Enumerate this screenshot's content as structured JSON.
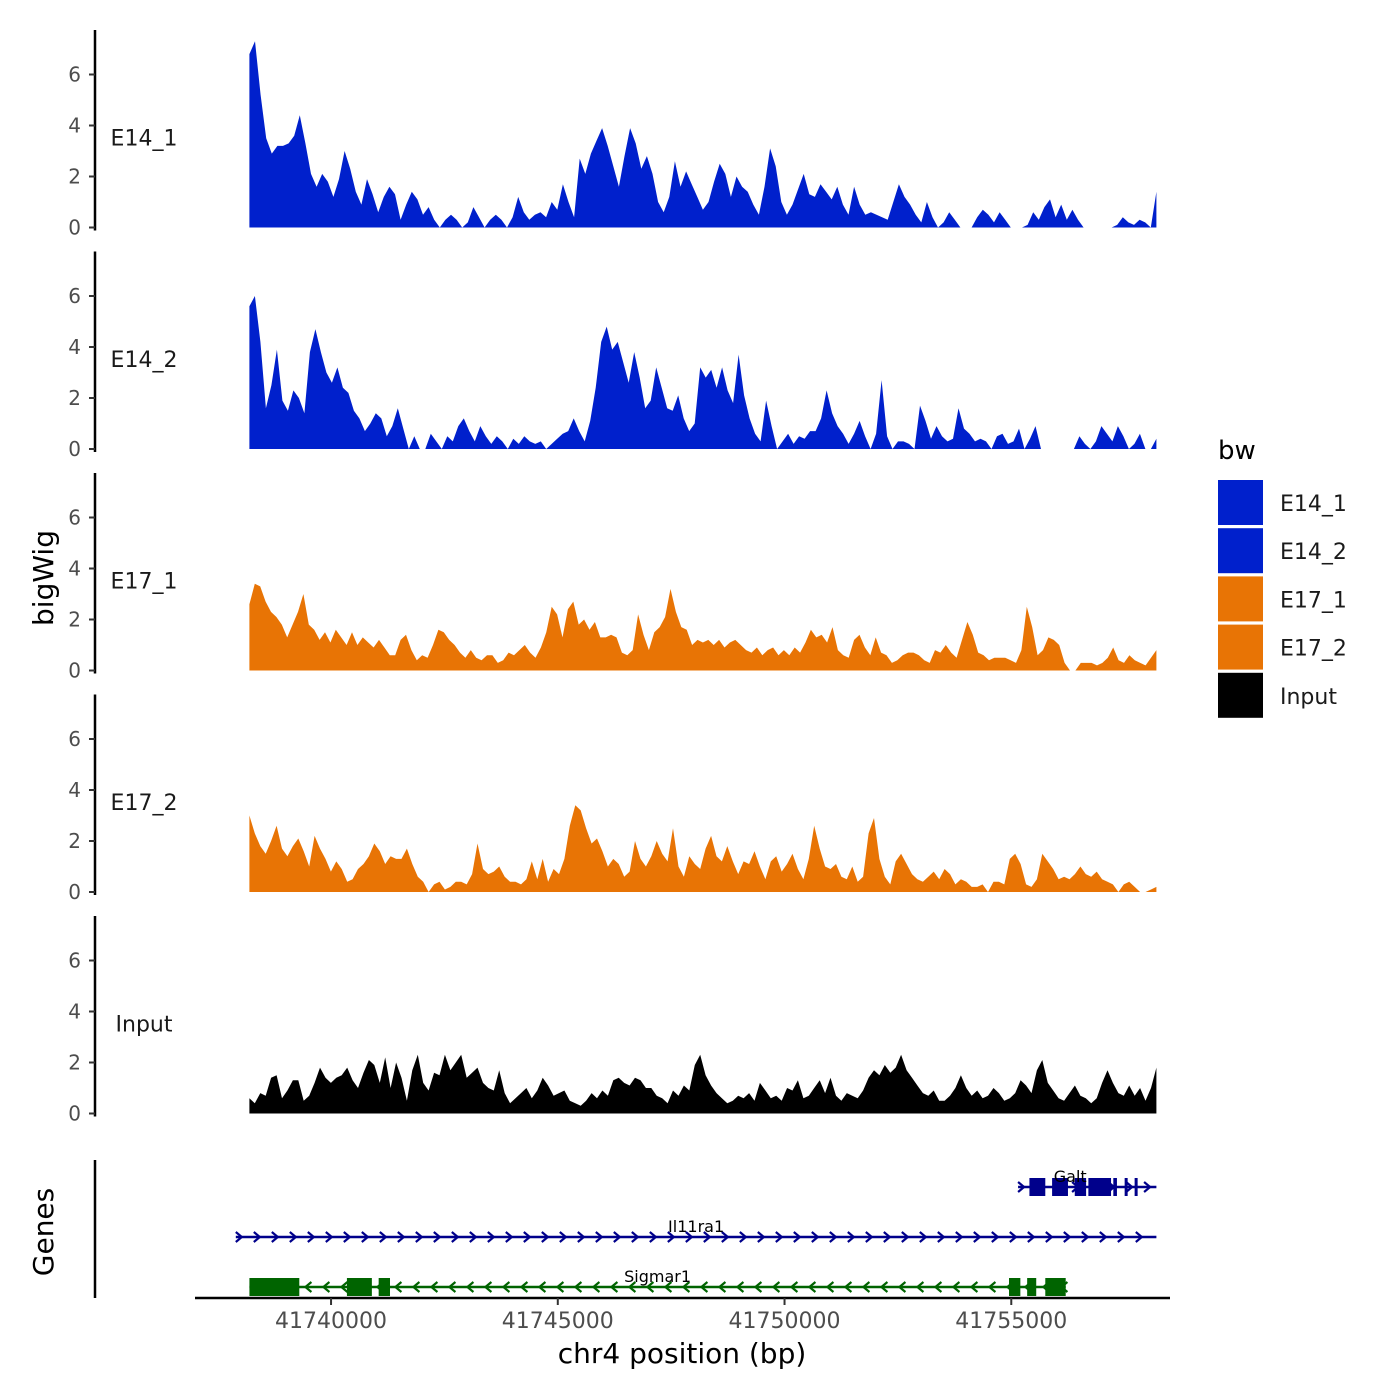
{
  "chart_data": {
    "type": "area",
    "ylabel": "bigWig",
    "genes_label": "Genes",
    "xlabel": "chr4 position (bp)",
    "xlim": [
      41737000,
      41758500
    ],
    "data_range": [
      41738200,
      41758200
    ],
    "ylim": [
      0,
      7.6
    ],
    "y_ticks": [
      "0",
      "2",
      "4",
      "6"
    ],
    "x_ticks": [
      {
        "value": 41740000,
        "label": "41740000"
      },
      {
        "value": 41745000,
        "label": "41745000"
      },
      {
        "value": 41750000,
        "label": "41750000"
      },
      {
        "value": 41755000,
        "label": "41755000"
      }
    ],
    "legend": {
      "title": "bw",
      "items": [
        {
          "label": "E14_1",
          "color": "#0020CC"
        },
        {
          "label": "E14_2",
          "color": "#0020CC"
        },
        {
          "label": "E17_1",
          "color": "#E87405"
        },
        {
          "label": "E17_2",
          "color": "#E87405"
        },
        {
          "label": "Input",
          "color": "#000000"
        }
      ]
    },
    "series": [
      {
        "name": "E14_1",
        "color": "#0020CC",
        "values": [
          6.8,
          7.3,
          5.2,
          3.5,
          2.9,
          3.2,
          3.2,
          3.3,
          3.6,
          4.4,
          3.3,
          2.1,
          1.6,
          2.1,
          1.8,
          1.2,
          1.9,
          3.0,
          2.3,
          1.4,
          0.9,
          1.9,
          1.3,
          0.6,
          1.2,
          1.6,
          1.3,
          0.3,
          0.9,
          1.4,
          1.1,
          0.5,
          0.8,
          0.3,
          0.0,
          0.3,
          0.5,
          0.3,
          0.0,
          0.2,
          0.8,
          0.4,
          0.0,
          0.3,
          0.5,
          0.3,
          0.0,
          0.4,
          1.2,
          0.6,
          0.3,
          0.5,
          0.6,
          0.4,
          1.0,
          0.7,
          1.7,
          1.0,
          0.4,
          2.7,
          2.1,
          2.9,
          3.4,
          3.9,
          3.2,
          2.4,
          1.6,
          2.8,
          3.9,
          3.3,
          2.3,
          2.8,
          2.1,
          1.0,
          0.6,
          1.2,
          2.6,
          1.6,
          2.2,
          1.7,
          1.2,
          0.7,
          1.0,
          1.8,
          2.5,
          2.1,
          1.2,
          2.0,
          1.6,
          1.4,
          0.9,
          0.5,
          1.6,
          3.1,
          2.4,
          1.0,
          0.5,
          0.9,
          1.5,
          2.1,
          1.3,
          1.2,
          1.7,
          1.4,
          1.1,
          1.6,
          0.9,
          0.5,
          1.6,
          0.9,
          0.5,
          0.6,
          0.5,
          0.4,
          0.3,
          1.0,
          1.7,
          1.2,
          0.9,
          0.5,
          0.2,
          1.0,
          0.4,
          0.0,
          0.2,
          0.6,
          0.3,
          0.0,
          0.0,
          0.0,
          0.4,
          0.7,
          0.5,
          0.2,
          0.6,
          0.3,
          0.0,
          0.0,
          0.0,
          0.1,
          0.6,
          0.3,
          0.8,
          1.1,
          0.4,
          0.9,
          0.3,
          0.7,
          0.3,
          0.0,
          0.0,
          0.0,
          0.0,
          0.0,
          0.0,
          0.1,
          0.4,
          0.2,
          0.1,
          0.3,
          0.2,
          0.0,
          1.4
        ]
      },
      {
        "name": "E14_2",
        "color": "#0020CC",
        "values": [
          5.6,
          6.0,
          4.2,
          1.6,
          2.5,
          3.9,
          1.9,
          1.5,
          2.3,
          2.0,
          1.4,
          3.8,
          4.7,
          3.8,
          3.0,
          2.6,
          3.2,
          2.4,
          2.2,
          1.5,
          1.2,
          0.7,
          1.0,
          1.4,
          1.2,
          0.5,
          0.9,
          1.6,
          0.8,
          0.0,
          0.5,
          0.0,
          0.0,
          0.6,
          0.3,
          0.0,
          0.5,
          0.3,
          0.9,
          1.2,
          0.7,
          0.3,
          0.9,
          0.5,
          0.2,
          0.5,
          0.3,
          0.0,
          0.4,
          0.2,
          0.5,
          0.3,
          0.2,
          0.3,
          0.0,
          0.2,
          0.4,
          0.6,
          0.7,
          1.2,
          0.7,
          0.3,
          1.1,
          2.4,
          4.2,
          4.8,
          3.9,
          4.2,
          3.4,
          2.6,
          3.8,
          2.8,
          1.6,
          1.9,
          3.2,
          2.4,
          1.6,
          1.5,
          2.1,
          1.2,
          0.7,
          1.0,
          3.2,
          2.8,
          3.1,
          2.4,
          3.2,
          2.3,
          1.8,
          3.7,
          2.1,
          1.2,
          0.6,
          0.3,
          1.9,
          0.9,
          0.0,
          0.3,
          0.6,
          0.2,
          0.5,
          0.4,
          0.7,
          0.7,
          1.2,
          2.3,
          1.4,
          0.9,
          0.6,
          0.2,
          0.6,
          1.1,
          0.5,
          0.0,
          0.6,
          2.7,
          0.5,
          0.0,
          0.3,
          0.3,
          0.2,
          0.0,
          1.7,
          1.1,
          0.4,
          0.9,
          0.5,
          0.3,
          0.4,
          1.6,
          0.8,
          0.6,
          0.3,
          0.4,
          0.3,
          0.0,
          0.5,
          0.6,
          0.2,
          0.3,
          0.8,
          0.0,
          0.4,
          0.9,
          0.0,
          0.0,
          0.0,
          0.0,
          0.0,
          0.0,
          0.0,
          0.5,
          0.2,
          0.0,
          0.3,
          0.9,
          0.6,
          0.3,
          0.9,
          0.5,
          0.0,
          0.2,
          0.6,
          0.0,
          0.0,
          0.4
        ]
      },
      {
        "name": "E17_1",
        "color": "#E87405",
        "values": [
          2.6,
          3.4,
          3.3,
          2.7,
          2.3,
          2.1,
          1.8,
          1.3,
          1.8,
          2.3,
          3.0,
          1.8,
          1.6,
          1.2,
          1.5,
          1.1,
          1.6,
          1.3,
          1.0,
          1.5,
          1.0,
          1.3,
          1.1,
          0.9,
          1.2,
          0.9,
          0.6,
          0.6,
          1.2,
          1.4,
          0.8,
          0.4,
          0.6,
          0.5,
          1.0,
          1.6,
          1.5,
          1.2,
          1.0,
          0.7,
          0.5,
          0.8,
          0.5,
          0.4,
          0.6,
          0.6,
          0.3,
          0.4,
          0.7,
          0.6,
          0.8,
          1.0,
          0.7,
          0.5,
          0.9,
          1.5,
          2.5,
          2.2,
          1.3,
          2.4,
          2.7,
          1.8,
          2.0,
          1.6,
          1.9,
          1.3,
          1.3,
          1.4,
          1.3,
          0.7,
          0.6,
          0.8,
          2.2,
          1.4,
          0.8,
          1.5,
          1.7,
          2.1,
          3.2,
          2.3,
          1.7,
          1.6,
          1.0,
          1.2,
          1.1,
          1.2,
          1.0,
          1.2,
          0.9,
          1.1,
          1.2,
          1.0,
          0.8,
          0.7,
          0.9,
          0.6,
          0.8,
          0.9,
          0.6,
          0.8,
          0.6,
          0.9,
          0.7,
          1.1,
          1.6,
          1.3,
          1.4,
          1.1,
          1.7,
          0.8,
          0.6,
          0.5,
          1.2,
          1.4,
          0.9,
          0.6,
          1.3,
          0.7,
          0.6,
          0.3,
          0.4,
          0.6,
          0.7,
          0.7,
          0.6,
          0.4,
          0.3,
          0.8,
          0.7,
          1.0,
          0.7,
          0.5,
          1.2,
          1.9,
          1.4,
          0.7,
          0.6,
          0.4,
          0.5,
          0.5,
          0.5,
          0.4,
          0.3,
          0.8,
          2.5,
          1.7,
          0.6,
          0.8,
          1.3,
          1.2,
          1.0,
          0.3,
          0.0,
          0.0,
          0.3,
          0.3,
          0.3,
          0.2,
          0.3,
          0.5,
          0.9,
          0.4,
          0.3,
          0.6,
          0.4,
          0.3,
          0.2,
          0.5,
          0.8
        ]
      },
      {
        "name": "E17_2",
        "color": "#E87405",
        "values": [
          3.0,
          2.3,
          1.8,
          1.5,
          2.0,
          2.6,
          1.7,
          1.4,
          1.8,
          2.1,
          1.6,
          1.0,
          2.2,
          1.7,
          1.3,
          0.8,
          1.2,
          0.9,
          0.4,
          0.5,
          0.9,
          1.1,
          1.4,
          1.9,
          1.6,
          1.1,
          1.4,
          1.3,
          1.3,
          1.7,
          1.1,
          0.6,
          0.4,
          0.0,
          0.3,
          0.4,
          0.1,
          0.2,
          0.4,
          0.4,
          0.3,
          0.7,
          1.9,
          0.9,
          0.7,
          0.8,
          1.0,
          0.6,
          0.4,
          0.4,
          0.3,
          0.5,
          1.2,
          0.5,
          1.3,
          0.4,
          0.9,
          0.7,
          1.3,
          2.6,
          3.4,
          3.2,
          2.5,
          1.9,
          2.1,
          1.6,
          1.0,
          1.3,
          1.1,
          0.6,
          0.8,
          2.0,
          1.3,
          1.0,
          1.4,
          2.0,
          1.5,
          1.2,
          2.5,
          1.0,
          0.6,
          1.4,
          1.1,
          0.9,
          1.7,
          2.2,
          1.4,
          1.2,
          1.8,
          1.2,
          0.7,
          1.2,
          1.1,
          1.6,
          1.0,
          0.5,
          1.2,
          1.4,
          0.8,
          1.1,
          1.5,
          0.9,
          0.5,
          1.3,
          2.6,
          1.7,
          1.0,
          0.9,
          1.1,
          0.6,
          0.5,
          1.0,
          0.4,
          0.6,
          2.3,
          2.9,
          1.3,
          0.6,
          0.3,
          1.2,
          1.5,
          1.1,
          0.7,
          0.5,
          0.4,
          0.6,
          0.8,
          0.5,
          0.9,
          0.7,
          0.3,
          0.5,
          0.4,
          0.2,
          0.2,
          0.3,
          0.0,
          0.4,
          0.4,
          0.3,
          1.3,
          1.5,
          1.1,
          0.3,
          0.2,
          0.5,
          1.5,
          1.2,
          0.9,
          0.5,
          0.6,
          0.5,
          0.7,
          1.0,
          0.7,
          0.6,
          0.8,
          0.5,
          0.4,
          0.3,
          0.0,
          0.3,
          0.4,
          0.2,
          0.0,
          0.0,
          0.1,
          0.2
        ]
      },
      {
        "name": "Input",
        "color": "#000000",
        "values": [
          0.6,
          0.4,
          0.8,
          0.7,
          1.4,
          1.5,
          0.6,
          0.9,
          1.3,
          1.3,
          0.5,
          0.7,
          1.2,
          1.8,
          1.4,
          1.2,
          1.4,
          1.5,
          1.8,
          1.3,
          1.0,
          1.6,
          2.1,
          1.9,
          1.2,
          2.2,
          1.0,
          2.0,
          1.4,
          0.5,
          1.7,
          2.3,
          1.2,
          0.9,
          1.6,
          1.5,
          2.3,
          1.7,
          2.0,
          2.3,
          1.4,
          1.6,
          1.8,
          1.2,
          1.0,
          0.9,
          1.7,
          0.8,
          0.4,
          0.6,
          0.8,
          1.0,
          0.6,
          0.9,
          1.4,
          1.1,
          0.7,
          0.8,
          0.9,
          0.5,
          0.4,
          0.3,
          0.5,
          0.8,
          0.6,
          0.9,
          0.7,
          1.3,
          1.4,
          1.2,
          1.1,
          1.4,
          1.3,
          1.0,
          1.0,
          0.7,
          0.6,
          0.4,
          0.9,
          0.7,
          1.1,
          0.9,
          1.9,
          2.3,
          1.5,
          1.1,
          0.8,
          0.6,
          0.4,
          0.5,
          0.7,
          0.6,
          0.8,
          0.5,
          1.2,
          0.9,
          0.6,
          0.7,
          0.5,
          1.0,
          0.9,
          1.3,
          0.6,
          0.7,
          1.0,
          1.3,
          0.8,
          1.4,
          0.7,
          0.5,
          0.8,
          0.7,
          0.6,
          0.9,
          1.4,
          1.7,
          1.5,
          1.9,
          1.6,
          1.8,
          2.3,
          1.7,
          1.4,
          1.1,
          0.8,
          0.7,
          0.9,
          0.5,
          0.5,
          0.7,
          1.0,
          1.5,
          1.0,
          0.7,
          0.9,
          0.6,
          0.7,
          1.0,
          0.8,
          0.5,
          0.6,
          0.8,
          1.3,
          1.1,
          0.8,
          1.7,
          2.1,
          1.2,
          0.9,
          0.6,
          0.5,
          0.8,
          1.1,
          0.7,
          0.6,
          0.4,
          0.6,
          1.2,
          1.7,
          1.2,
          0.8,
          0.7,
          1.1,
          0.7,
          1.0,
          0.5,
          1.0,
          1.8
        ]
      }
    ],
    "genes": [
      {
        "name": "Galt",
        "color": "#00008B",
        "strand": "+",
        "start": 41755150,
        "end": 41758200,
        "exons": [
          [
            41755400,
            41755750
          ],
          [
            41755900,
            41756250
          ],
          [
            41756400,
            41756650
          ],
          [
            41756700,
            41757200
          ],
          [
            41757250,
            41757330
          ],
          [
            41757500,
            41757560
          ],
          [
            41757720,
            41757780
          ]
        ]
      },
      {
        "name": "Il11ra1",
        "color": "#00008B",
        "strand": "+",
        "start": 41737900,
        "end": 41758200,
        "exons": []
      },
      {
        "name": "Sigmar1",
        "color": "#006400",
        "strand": "-",
        "start": 41738200,
        "end": 41756200,
        "exons": [
          [
            41738200,
            41739300
          ],
          [
            41740350,
            41740900
          ],
          [
            41741050,
            41741300
          ],
          [
            41754950,
            41755200
          ],
          [
            41755350,
            41755550
          ],
          [
            41755750,
            41756200
          ]
        ]
      }
    ]
  }
}
